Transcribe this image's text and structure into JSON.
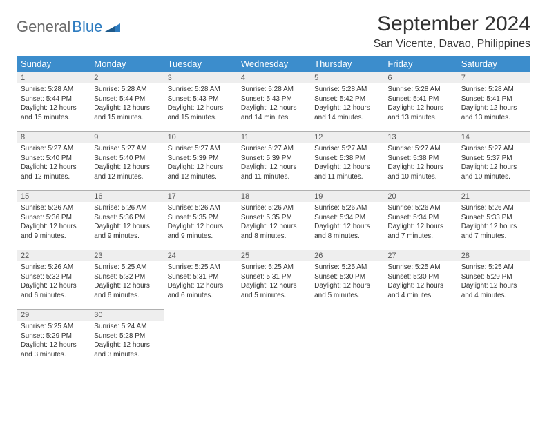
{
  "brand": {
    "part1": "General",
    "part2": "Blue"
  },
  "title": "September 2024",
  "location": "San Vicente, Davao, Philippines",
  "colors": {
    "header_bg": "#3c8dcc",
    "header_text": "#ffffff",
    "daynum_bg": "#eeeeee",
    "daynum_border": "#b0b0b0",
    "logo_gray": "#6b6b6b",
    "logo_blue": "#2e7cc0",
    "text": "#333333"
  },
  "weekdays": [
    "Sunday",
    "Monday",
    "Tuesday",
    "Wednesday",
    "Thursday",
    "Friday",
    "Saturday"
  ],
  "weeks": [
    [
      {
        "n": "1",
        "sr": "5:28 AM",
        "ss": "5:44 PM",
        "dl": "12 hours and 15 minutes."
      },
      {
        "n": "2",
        "sr": "5:28 AM",
        "ss": "5:44 PM",
        "dl": "12 hours and 15 minutes."
      },
      {
        "n": "3",
        "sr": "5:28 AM",
        "ss": "5:43 PM",
        "dl": "12 hours and 15 minutes."
      },
      {
        "n": "4",
        "sr": "5:28 AM",
        "ss": "5:43 PM",
        "dl": "12 hours and 14 minutes."
      },
      {
        "n": "5",
        "sr": "5:28 AM",
        "ss": "5:42 PM",
        "dl": "12 hours and 14 minutes."
      },
      {
        "n": "6",
        "sr": "5:28 AM",
        "ss": "5:41 PM",
        "dl": "12 hours and 13 minutes."
      },
      {
        "n": "7",
        "sr": "5:28 AM",
        "ss": "5:41 PM",
        "dl": "12 hours and 13 minutes."
      }
    ],
    [
      {
        "n": "8",
        "sr": "5:27 AM",
        "ss": "5:40 PM",
        "dl": "12 hours and 12 minutes."
      },
      {
        "n": "9",
        "sr": "5:27 AM",
        "ss": "5:40 PM",
        "dl": "12 hours and 12 minutes."
      },
      {
        "n": "10",
        "sr": "5:27 AM",
        "ss": "5:39 PM",
        "dl": "12 hours and 12 minutes."
      },
      {
        "n": "11",
        "sr": "5:27 AM",
        "ss": "5:39 PM",
        "dl": "12 hours and 11 minutes."
      },
      {
        "n": "12",
        "sr": "5:27 AM",
        "ss": "5:38 PM",
        "dl": "12 hours and 11 minutes."
      },
      {
        "n": "13",
        "sr": "5:27 AM",
        "ss": "5:38 PM",
        "dl": "12 hours and 10 minutes."
      },
      {
        "n": "14",
        "sr": "5:27 AM",
        "ss": "5:37 PM",
        "dl": "12 hours and 10 minutes."
      }
    ],
    [
      {
        "n": "15",
        "sr": "5:26 AM",
        "ss": "5:36 PM",
        "dl": "12 hours and 9 minutes."
      },
      {
        "n": "16",
        "sr": "5:26 AM",
        "ss": "5:36 PM",
        "dl": "12 hours and 9 minutes."
      },
      {
        "n": "17",
        "sr": "5:26 AM",
        "ss": "5:35 PM",
        "dl": "12 hours and 9 minutes."
      },
      {
        "n": "18",
        "sr": "5:26 AM",
        "ss": "5:35 PM",
        "dl": "12 hours and 8 minutes."
      },
      {
        "n": "19",
        "sr": "5:26 AM",
        "ss": "5:34 PM",
        "dl": "12 hours and 8 minutes."
      },
      {
        "n": "20",
        "sr": "5:26 AM",
        "ss": "5:34 PM",
        "dl": "12 hours and 7 minutes."
      },
      {
        "n": "21",
        "sr": "5:26 AM",
        "ss": "5:33 PM",
        "dl": "12 hours and 7 minutes."
      }
    ],
    [
      {
        "n": "22",
        "sr": "5:26 AM",
        "ss": "5:32 PM",
        "dl": "12 hours and 6 minutes."
      },
      {
        "n": "23",
        "sr": "5:25 AM",
        "ss": "5:32 PM",
        "dl": "12 hours and 6 minutes."
      },
      {
        "n": "24",
        "sr": "5:25 AM",
        "ss": "5:31 PM",
        "dl": "12 hours and 6 minutes."
      },
      {
        "n": "25",
        "sr": "5:25 AM",
        "ss": "5:31 PM",
        "dl": "12 hours and 5 minutes."
      },
      {
        "n": "26",
        "sr": "5:25 AM",
        "ss": "5:30 PM",
        "dl": "12 hours and 5 minutes."
      },
      {
        "n": "27",
        "sr": "5:25 AM",
        "ss": "5:30 PM",
        "dl": "12 hours and 4 minutes."
      },
      {
        "n": "28",
        "sr": "5:25 AM",
        "ss": "5:29 PM",
        "dl": "12 hours and 4 minutes."
      }
    ],
    [
      {
        "n": "29",
        "sr": "5:25 AM",
        "ss": "5:29 PM",
        "dl": "12 hours and 3 minutes."
      },
      {
        "n": "30",
        "sr": "5:24 AM",
        "ss": "5:28 PM",
        "dl": "12 hours and 3 minutes."
      },
      null,
      null,
      null,
      null,
      null
    ]
  ],
  "labels": {
    "sunrise": "Sunrise: ",
    "sunset": "Sunset: ",
    "daylight": "Daylight: "
  }
}
